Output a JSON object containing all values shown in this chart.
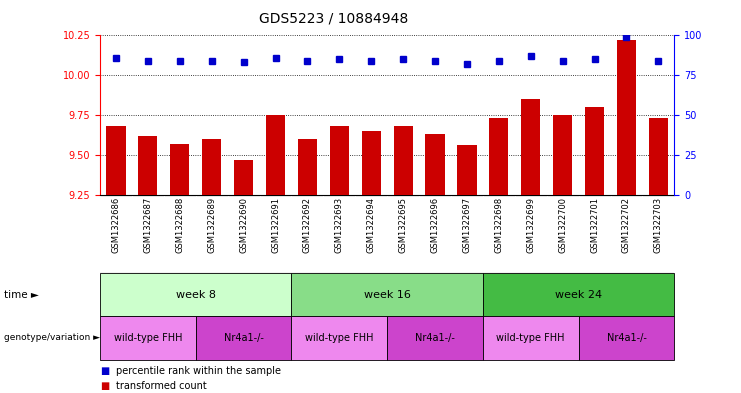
{
  "title": "GDS5223 / 10884948",
  "samples": [
    "GSM1322686",
    "GSM1322687",
    "GSM1322688",
    "GSM1322689",
    "GSM1322690",
    "GSM1322691",
    "GSM1322692",
    "GSM1322693",
    "GSM1322694",
    "GSM1322695",
    "GSM1322696",
    "GSM1322697",
    "GSM1322698",
    "GSM1322699",
    "GSM1322700",
    "GSM1322701",
    "GSM1322702",
    "GSM1322703"
  ],
  "transformed_count": [
    9.68,
    9.62,
    9.57,
    9.6,
    9.47,
    9.75,
    9.6,
    9.68,
    9.65,
    9.68,
    9.63,
    9.56,
    9.73,
    9.85,
    9.75,
    9.8,
    10.22,
    9.73
  ],
  "percentile_rank": [
    86,
    84,
    84,
    84,
    83,
    86,
    84,
    85,
    84,
    85,
    84,
    82,
    84,
    87,
    84,
    85,
    99,
    84
  ],
  "ylim_left": [
    9.25,
    10.25
  ],
  "ylim_right": [
    0,
    100
  ],
  "yticks_left": [
    9.25,
    9.5,
    9.75,
    10.0,
    10.25
  ],
  "yticks_right": [
    0,
    25,
    50,
    75,
    100
  ],
  "bar_color": "#cc0000",
  "dot_color": "#0000cc",
  "bar_width": 0.6,
  "time_groups": [
    {
      "label": "week 8",
      "start": 0,
      "end": 5,
      "color": "#ccffcc"
    },
    {
      "label": "week 16",
      "start": 6,
      "end": 11,
      "color": "#88dd88"
    },
    {
      "label": "week 24",
      "start": 12,
      "end": 17,
      "color": "#44bb44"
    }
  ],
  "genotype_groups": [
    {
      "label": "wild-type FHH",
      "start": 0,
      "end": 2,
      "color": "#ee88ee"
    },
    {
      "label": "Nr4a1-/-",
      "start": 3,
      "end": 5,
      "color": "#cc44cc"
    },
    {
      "label": "wild-type FHH",
      "start": 6,
      "end": 8,
      "color": "#ee88ee"
    },
    {
      "label": "Nr4a1-/-",
      "start": 9,
      "end": 11,
      "color": "#cc44cc"
    },
    {
      "label": "wild-type FHH",
      "start": 12,
      "end": 14,
      "color": "#ee88ee"
    },
    {
      "label": "Nr4a1-/-",
      "start": 15,
      "end": 17,
      "color": "#cc44cc"
    }
  ],
  "legend_bar_label": "transformed count",
  "legend_dot_label": "percentile rank within the sample",
  "bg_color": "#ffffff",
  "xtick_bg": "#cccccc",
  "title_fontsize": 10,
  "tick_fontsize": 7,
  "annot_fontsize": 8,
  "sample_fontsize": 6
}
